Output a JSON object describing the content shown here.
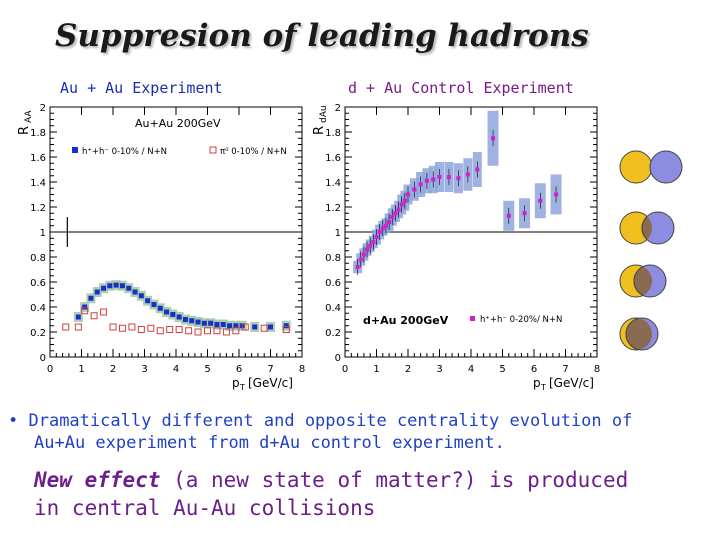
{
  "title": "Suppresion of leading hadrons",
  "left_label": "Au + Au Experiment",
  "right_label": "d + Au Control Experiment",
  "colors": {
    "label_left": "#1a2fb0",
    "label_right": "#7a1a8a",
    "bullet1": "#1f3fc6",
    "bullet2": "#6a1f8a",
    "band_green": "#9fc8a8",
    "band_blue": "#8ea4dc",
    "band_grey": "#9aa6c0",
    "marker_blue": "#1a2fc8",
    "marker_red": "#d04040",
    "marker_magenta": "#d020d0",
    "circle_yellow": "#f0c020",
    "circle_purple": "#8c8ce0",
    "circle_brown": "#8a6a50"
  },
  "bullet": {
    "line1": "Dramatically different and opposite centrality evolution of",
    "line2": "Au+Au experiment from d+Au control experiment.",
    "line3_em": "New effect",
    "line3_rest": " (a new state of matter?) is produced",
    "line4": "in central Au-Au collisions"
  },
  "chart_data": [
    {
      "type": "scatter",
      "ylabel": "R",
      "ylabel_sub": "AA",
      "xlabel": "p",
      "xlabel_sub": "T",
      "xlabel_unit": "[GeV/c]",
      "xlim": [
        0,
        8
      ],
      "ylim": [
        0,
        2
      ],
      "x_ticks": [
        "0",
        "1",
        "2",
        "3",
        "4",
        "5",
        "6",
        "7",
        "8"
      ],
      "y_ticks": [
        "0",
        "0.2",
        "0.4",
        "0.6",
        "0.8",
        "1",
        "1.2",
        "1.4",
        "1.6",
        "1.8",
        "2"
      ],
      "reference_line": 1,
      "annotation": "Au+Au 200GeV",
      "legend": [
        {
          "label": "h⁺+h⁻ 0-10% / N+N",
          "marker": "filled-square"
        },
        {
          "label": "π⁰ 0-10% / N+N",
          "marker": "open-square"
        }
      ],
      "series": [
        {
          "name": "h⁺+h⁻ 0-10% / N+N",
          "x": [
            0.9,
            1.1,
            1.3,
            1.5,
            1.7,
            1.9,
            2.1,
            2.3,
            2.5,
            2.7,
            2.9,
            3.1,
            3.3,
            3.5,
            3.7,
            3.9,
            4.1,
            4.3,
            4.5,
            4.7,
            4.9,
            5.1,
            5.3,
            5.5,
            5.7,
            5.9,
            6.1,
            6.5,
            7.0,
            7.5
          ],
          "y": [
            0.32,
            0.4,
            0.47,
            0.52,
            0.55,
            0.57,
            0.575,
            0.57,
            0.55,
            0.52,
            0.49,
            0.45,
            0.42,
            0.39,
            0.36,
            0.34,
            0.32,
            0.3,
            0.29,
            0.28,
            0.27,
            0.27,
            0.26,
            0.26,
            0.25,
            0.25,
            0.25,
            0.24,
            0.24,
            0.25
          ],
          "band_half_width": 0.04
        },
        {
          "name": "π⁰ 0-10% / N+N",
          "x": [
            0.5,
            0.9,
            1.1,
            1.4,
            1.7,
            2.0,
            2.3,
            2.6,
            2.9,
            3.2,
            3.5,
            3.8,
            4.1,
            4.4,
            4.7,
            5.0,
            5.3,
            5.6,
            5.9,
            6.2,
            6.8,
            7.5
          ],
          "y": [
            0.24,
            0.24,
            0.37,
            0.33,
            0.36,
            0.24,
            0.23,
            0.24,
            0.22,
            0.23,
            0.21,
            0.22,
            0.22,
            0.21,
            0.2,
            0.21,
            0.21,
            0.2,
            0.21,
            0.24,
            0.23,
            0.22
          ]
        }
      ]
    },
    {
      "type": "scatter",
      "ylabel": "R",
      "ylabel_sub": "dAu",
      "xlabel": "p",
      "xlabel_sub": "T",
      "xlabel_unit": "[GeV/c]",
      "xlim": [
        0,
        8
      ],
      "ylim": [
        0,
        2
      ],
      "x_ticks": [
        "0",
        "1",
        "2",
        "3",
        "4",
        "5",
        "6",
        "7",
        "8"
      ],
      "y_ticks": [
        "0",
        "0.2",
        "0.4",
        "0.6",
        "0.8",
        "1",
        "1.2",
        "1.4",
        "1.6",
        "1.8",
        "2"
      ],
      "reference_line": 1,
      "annotation": "d+Au 200GeV",
      "legend": [
        {
          "label": "h⁺+h⁻ 0-20%/ N+N",
          "marker": "filled-square"
        }
      ],
      "series": [
        {
          "name": "h⁺+h⁻ 0-20%/ N+N",
          "x": [
            0.4,
            0.5,
            0.6,
            0.7,
            0.8,
            0.9,
            1.0,
            1.1,
            1.2,
            1.3,
            1.4,
            1.5,
            1.6,
            1.7,
            1.8,
            1.9,
            2.0,
            2.2,
            2.4,
            2.6,
            2.8,
            3.0,
            3.3,
            3.6,
            3.9,
            4.2,
            4.7,
            5.2,
            5.7,
            6.2,
            6.7
          ],
          "y": [
            0.72,
            0.78,
            0.82,
            0.86,
            0.89,
            0.92,
            0.96,
            1.0,
            1.03,
            1.05,
            1.08,
            1.12,
            1.15,
            1.18,
            1.22,
            1.25,
            1.3,
            1.34,
            1.38,
            1.41,
            1.42,
            1.44,
            1.44,
            1.43,
            1.46,
            1.5,
            1.75,
            1.13,
            1.15,
            1.25,
            1.3
          ],
          "band_half_width": [
            0.05,
            0.05,
            0.05,
            0.05,
            0.05,
            0.05,
            0.06,
            0.06,
            0.06,
            0.06,
            0.07,
            0.07,
            0.07,
            0.07,
            0.08,
            0.08,
            0.08,
            0.09,
            0.1,
            0.1,
            0.11,
            0.12,
            0.12,
            0.12,
            0.13,
            0.14,
            0.22,
            0.12,
            0.12,
            0.14,
            0.16
          ]
        }
      ]
    }
  ]
}
